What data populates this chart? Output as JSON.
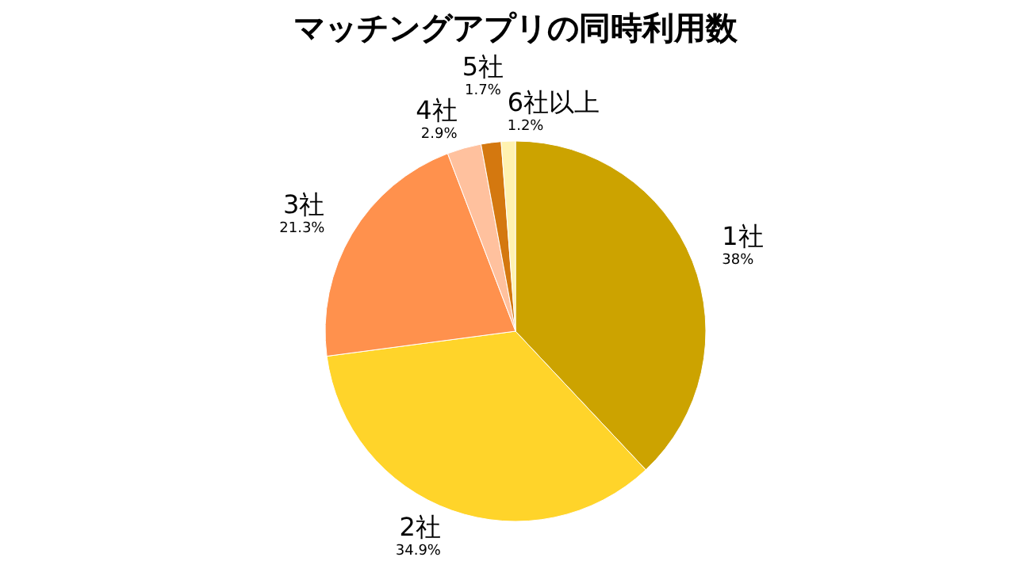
{
  "chart_data": {
    "type": "pie",
    "title": "マッチングアプリの同時利用数",
    "categories": [
      "1社",
      "2社",
      "3社",
      "4社",
      "5社",
      "6社以上"
    ],
    "values": [
      38,
      34.9,
      21.3,
      2.9,
      1.7,
      1.2
    ],
    "value_labels": [
      "38%",
      "34.9%",
      "21.3%",
      "2.9%",
      "1.7%",
      "1.2%"
    ],
    "colors": [
      "#cca300",
      "#ffd42a",
      "#ff914d",
      "#ffc19e",
      "#d4780f",
      "#fff2b0"
    ],
    "legend": false
  }
}
